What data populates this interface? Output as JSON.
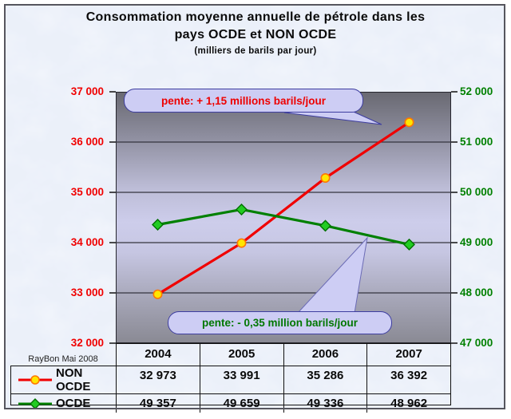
{
  "header": {
    "title_line1": "Consommation moyenne annuelle de pétrole dans les",
    "title_line2": "pays OCDE et NON OCDE",
    "subtitle": "(milliers de barils par jour)",
    "credit": "RayBon Mai 2008"
  },
  "annotations": {
    "slope_non_ocde": "pente: + 1,15 millions barils/jour",
    "slope_ocde": "pente: - 0,35 million barils/jour"
  },
  "colors": {
    "non_ocde_line": "#f00000",
    "non_ocde_marker_fill": "#ffe600",
    "non_ocde_marker_stroke": "#ff7700",
    "ocde_line": "#008000",
    "ocde_marker_fill": "#22cc22",
    "ocde_marker_stroke": "#007000",
    "left_axis_text": "#f00000",
    "right_axis_text": "#008000",
    "callout_fill": "#cdcdf4",
    "callout_border": "#3d3da0",
    "gridline": "#34343f"
  },
  "chart_data": {
    "type": "line",
    "title": "Consommation moyenne annuelle de pétrole dans les pays OCDE et NON OCDE",
    "ylabel_unit": "milliers de barils par jour",
    "categories": [
      "2004",
      "2005",
      "2006",
      "2007"
    ],
    "series": [
      {
        "name": "NON OCDE",
        "axis": "left",
        "values": [
          32973,
          33991,
          35286,
          36392
        ],
        "color": "#f00000",
        "marker": "circle",
        "marker_fill": "#ffe600",
        "marker_stroke": "#ff7700"
      },
      {
        "name": "OCDE",
        "axis": "right",
        "values": [
          49357,
          49659,
          49336,
          48962
        ],
        "color": "#008000",
        "marker": "diamond",
        "marker_fill": "#22cc22",
        "marker_stroke": "#007000"
      }
    ],
    "left_axis": {
      "min": 32000,
      "max": 37000,
      "tick_values": [
        37000,
        36000,
        35000,
        34000,
        33000,
        32000
      ],
      "tick_labels": [
        "37 000",
        "36 000",
        "35 000",
        "34 000",
        "33 000",
        "32 000"
      ]
    },
    "right_axis": {
      "min": 47000,
      "max": 52000,
      "tick_values": [
        52000,
        51000,
        50000,
        49000,
        48000,
        47000
      ],
      "tick_labels": [
        "52 000",
        "51 000",
        "50 000",
        "49 000",
        "48 000",
        "47 000"
      ]
    },
    "grid": "horizontal",
    "legend_position": "bottom-table"
  },
  "table": {
    "rows": [
      {
        "label": "NON OCDE",
        "values": [
          "32 973",
          "33 991",
          "35 286",
          "36 392"
        ]
      },
      {
        "label": "OCDE",
        "values": [
          "49 357",
          "49 659",
          "49 336",
          "48 962"
        ]
      }
    ]
  }
}
